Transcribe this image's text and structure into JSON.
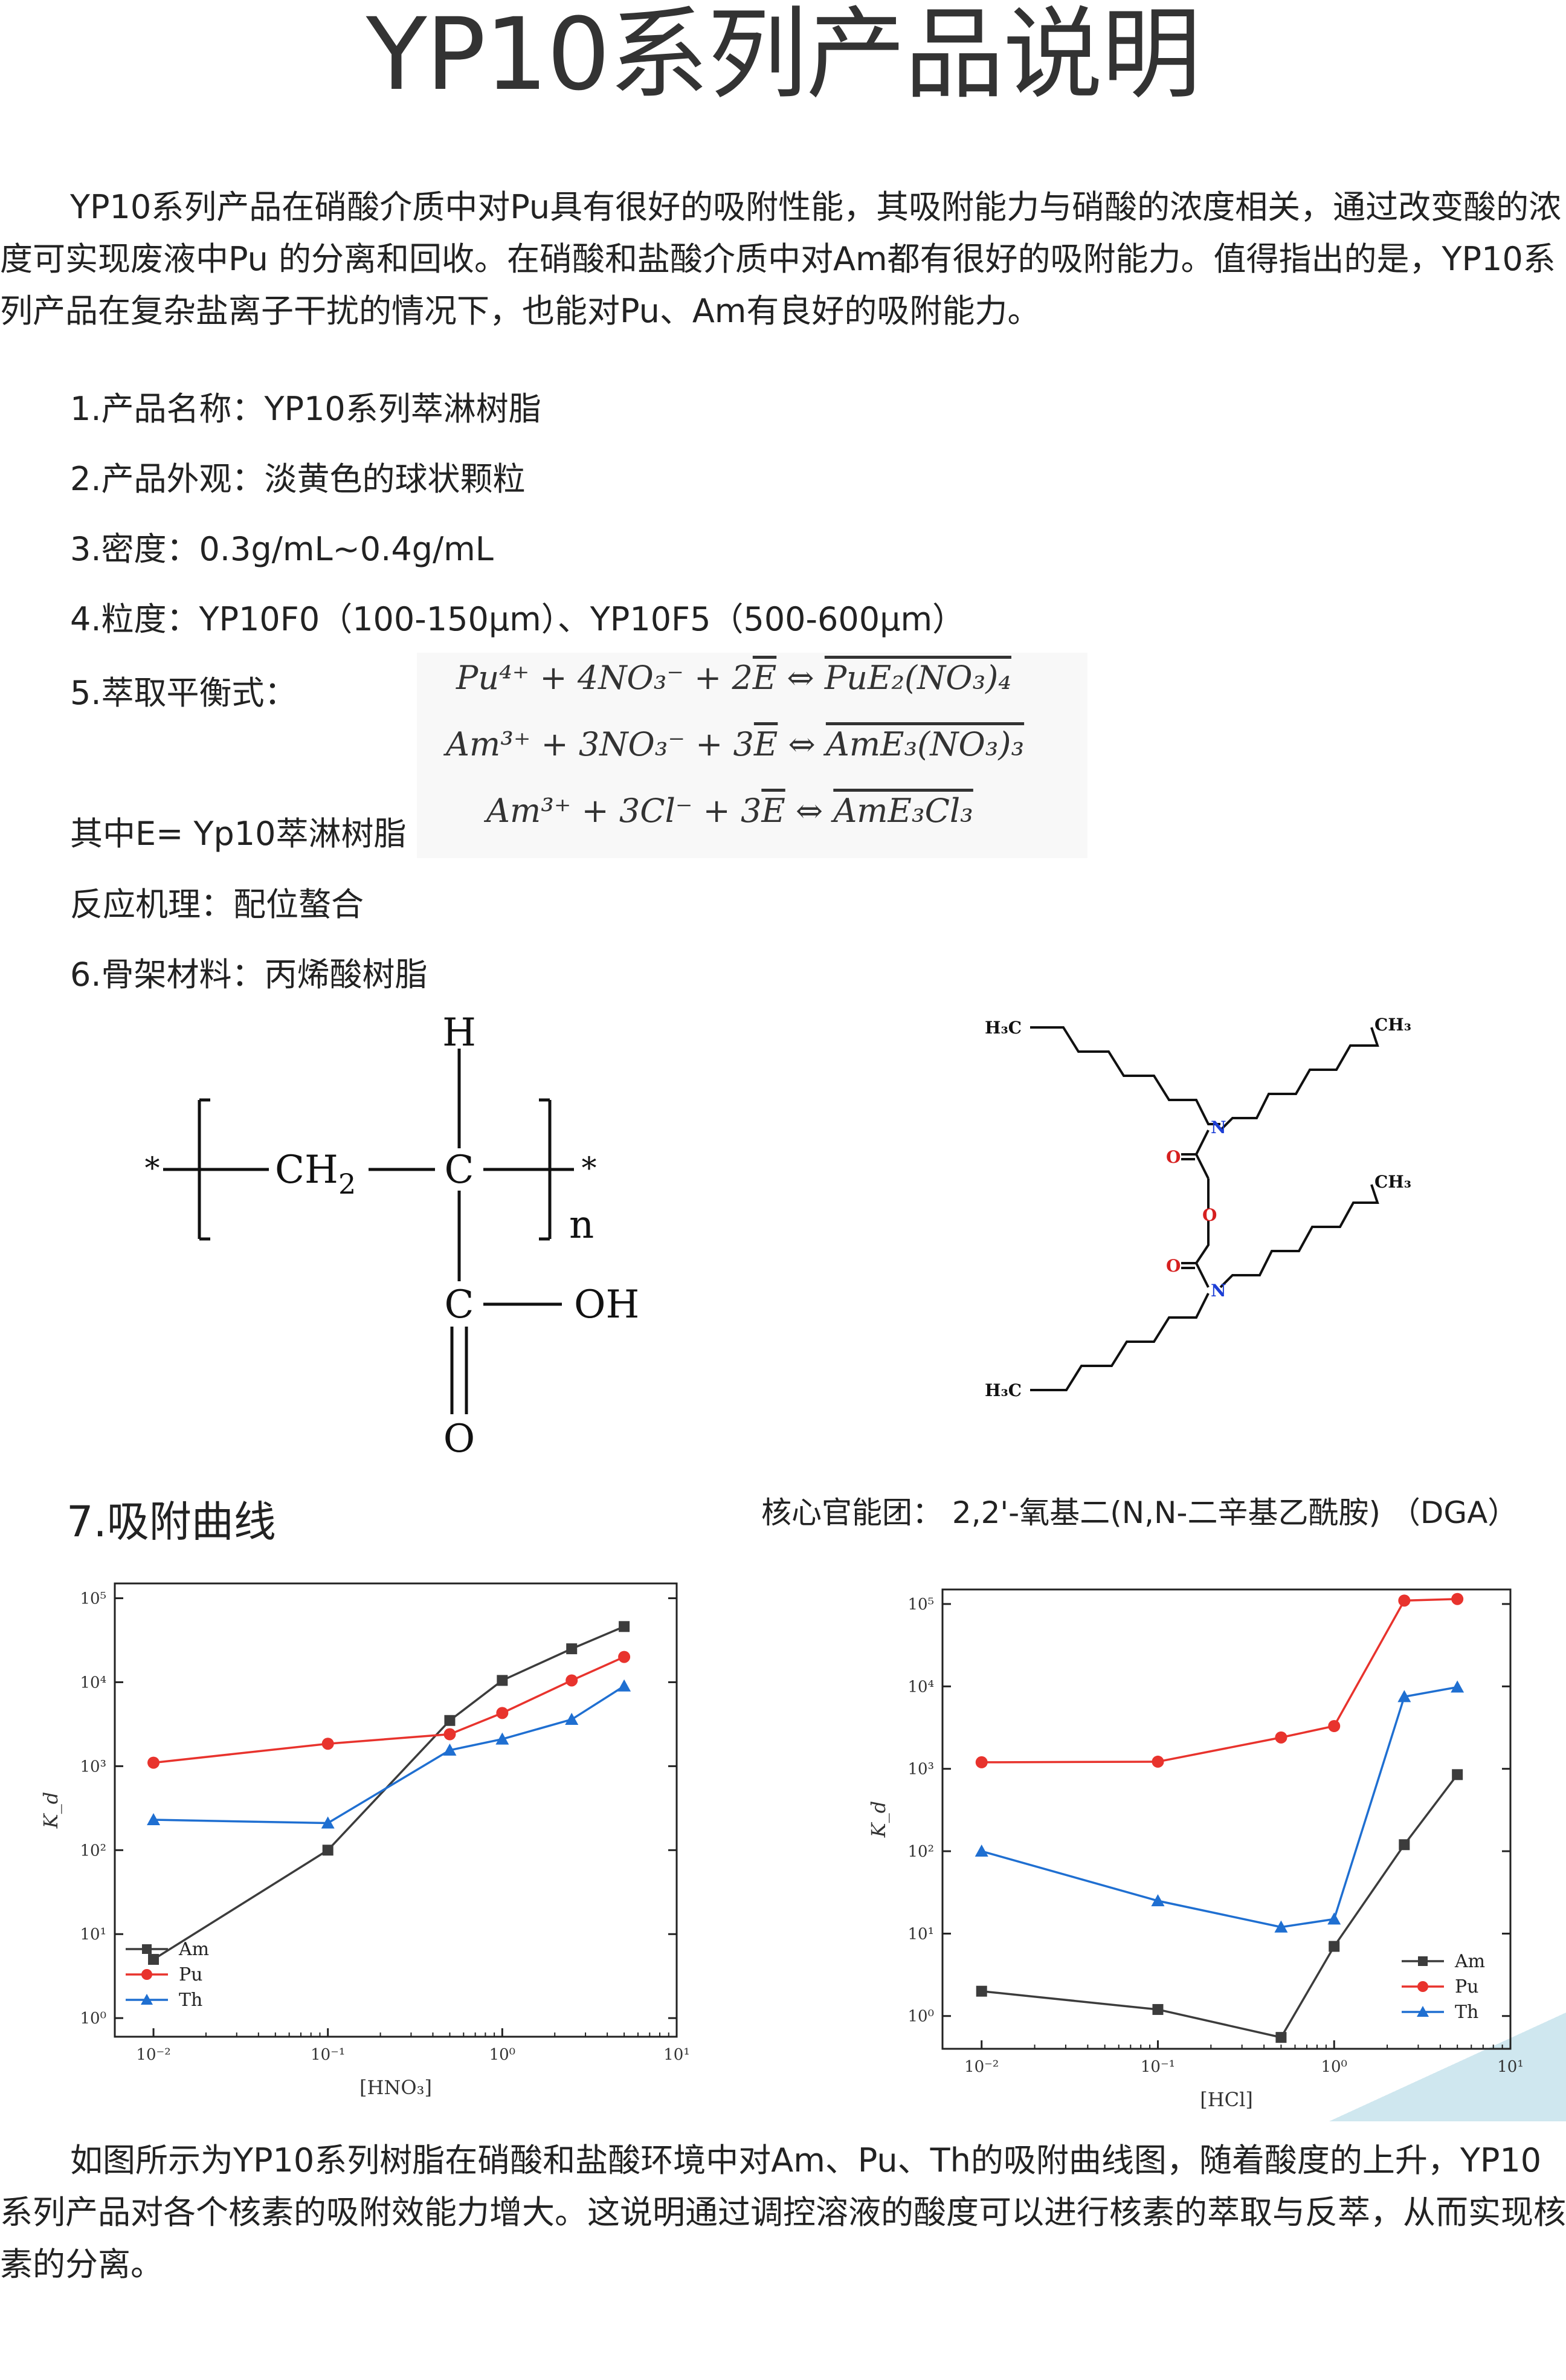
{
  "title": "YP10系列产品说明",
  "intro": "YP10系列产品在硝酸介质中对Pu具有很好的吸附性能，其吸附能力与硝酸的浓度相关，通过改变酸的浓度可实现废液中Pu 的分离和回收。在硝酸和盐酸介质中对Am都有很好的吸附能力。值得指出的是，YP10系列产品在复杂盐离子干扰的情况下，也能对Pu、Am有良好的吸附能力。",
  "items": {
    "name": "1.产品名称：YP10系列萃淋树脂",
    "appearance": "2.产品外观：淡黄色的球状颗粒",
    "density": "3.密度：0.3g/mL~0.4g/mL",
    "particle": "4.粒度：YP10F0（100-150μm）、YP10F5（500-600μm）",
    "equilibrium": "5.萃取平衡式：",
    "e_def": "其中E= Yp10萃淋树脂",
    "mechanism": "反应机理：配位螯合",
    "skeleton": "6.骨架材料：丙烯酸树脂",
    "curves_heading": "7.吸附曲线",
    "functional_group": "核心官能团： 2,2'-氧基二(N,N-二辛基乙酰胺) （DGA）"
  },
  "equations": [
    {
      "lhs": "Pu⁴⁺ + 4NO₃⁻ + 2",
      "e": "E",
      "arrow": " ⇔ ",
      "rhs": "PuE₂(NO₃)₄"
    },
    {
      "lhs": "Am³⁺ + 3NO₃⁻ + 3",
      "e": "E",
      "arrow": " ⇔ ",
      "rhs": "AmE₃(NO₃)₃"
    },
    {
      "lhs": "Am³⁺ + 3Cl⁻ + 3",
      "e": "E",
      "arrow": " ⇔ ",
      "rhs": "AmE₃Cl₃"
    }
  ],
  "polymer": {
    "h": "H",
    "star_left": "*",
    "star_right": "*",
    "ch2": "CH",
    "ch2_sub": "2",
    "c": "C",
    "n": "n",
    "c2": "C",
    "oh": "OH",
    "o": "O"
  },
  "dga": {
    "h3c": "H₃C",
    "ch3": "CH₃",
    "n": "N",
    "o": "O"
  },
  "chart_data": [
    {
      "type": "line",
      "xlabel": "[HNO₃]",
      "ylabel": "K_d",
      "xscale": "log",
      "yscale": "log",
      "xlim": [
        0.006,
        10
      ],
      "ylim": [
        0.6,
        150000
      ],
      "x_ticks": [
        "10⁻²",
        "10⁻¹",
        "10⁰",
        "10¹"
      ],
      "y_ticks": [
        "10⁰",
        "10¹",
        "10²",
        "10³",
        "10⁴",
        "10⁵"
      ],
      "legend": "bottom-left",
      "series": [
        {
          "name": "Am",
          "color": "#3c3c3c",
          "marker": "square",
          "x": [
            0.01,
            0.1,
            0.5,
            1,
            2.5,
            5
          ],
          "y": [
            5,
            100,
            3500,
            10500,
            25000,
            46000
          ]
        },
        {
          "name": "Pu",
          "color": "#e8332d",
          "marker": "circle",
          "x": [
            0.01,
            0.1,
            0.5,
            1,
            2.5,
            5
          ],
          "y": [
            1100,
            1850,
            2400,
            4300,
            10500,
            20000
          ]
        },
        {
          "name": "Th",
          "color": "#1f6fd1",
          "marker": "triangle",
          "x": [
            0.01,
            0.1,
            0.5,
            1,
            2.5,
            5
          ],
          "y": [
            230,
            210,
            1550,
            2100,
            3600,
            9000
          ]
        }
      ]
    },
    {
      "type": "line",
      "xlabel": "[HCl]",
      "ylabel": "K_d",
      "xscale": "log",
      "yscale": "log",
      "xlim": [
        0.006,
        10
      ],
      "ylim": [
        0.4,
        150000
      ],
      "x_ticks": [
        "10⁻²",
        "10⁻¹",
        "10⁰",
        "10¹"
      ],
      "y_ticks": [
        "10⁰",
        "10¹",
        "10²",
        "10³",
        "10⁴",
        "10⁵"
      ],
      "legend": "bottom-right",
      "series": [
        {
          "name": "Am",
          "color": "#3c3c3c",
          "marker": "square",
          "x": [
            0.01,
            0.1,
            0.5,
            1,
            2.5,
            5
          ],
          "y": [
            2,
            1.2,
            0.55,
            7,
            120,
            850
          ]
        },
        {
          "name": "Pu",
          "color": "#e8332d",
          "marker": "circle",
          "x": [
            0.01,
            0.1,
            0.5,
            1,
            2.5,
            5
          ],
          "y": [
            1200,
            1220,
            2400,
            3300,
            110000,
            115000
          ]
        },
        {
          "name": "Th",
          "color": "#1f6fd1",
          "marker": "triangle",
          "x": [
            0.01,
            0.1,
            0.5,
            1,
            2.5,
            5
          ],
          "y": [
            100,
            25,
            12,
            15,
            7500,
            9800
          ]
        }
      ]
    }
  ],
  "conclusion": "如图所示为YP10系列树脂在硝酸和盐酸环境中对Am、Pu、Th的吸附曲线图，随着酸度的上升，YP10系列产品对各个核素的吸附效能力增大。这说明通过调控溶液的酸度可以进行核素的萃取与反萃，从而实现核素的分离。"
}
